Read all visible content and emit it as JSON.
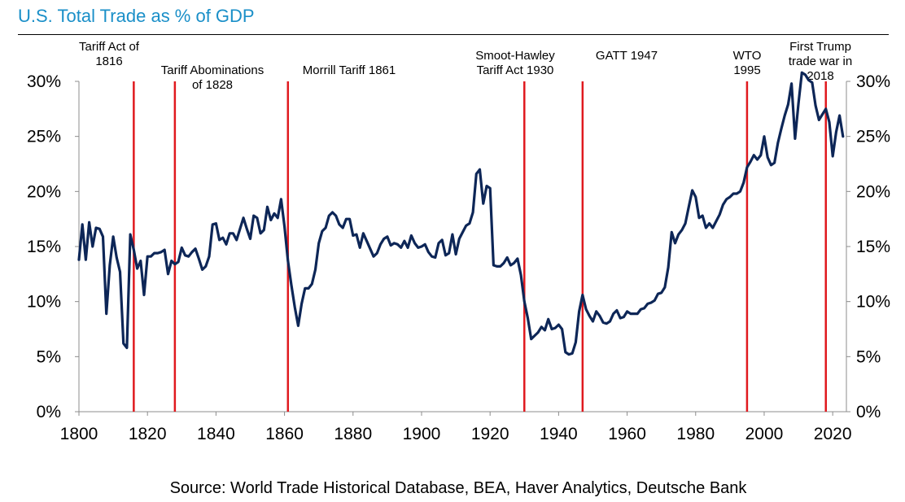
{
  "title": "U.S. Total Trade as % of GDP",
  "source": "Source: World Trade Historical Database, BEA, Haver Analytics, Deutsche Bank",
  "chart_data": {
    "type": "line",
    "title": "U.S. Total Trade as % of GDP",
    "xlabel": "",
    "ylabel": "",
    "xlim": [
      1800,
      2024
    ],
    "ylim": [
      0,
      30
    ],
    "x_ticks": [
      "1800",
      "1820",
      "1840",
      "1860",
      "1880",
      "1900",
      "1920",
      "1940",
      "1960",
      "1980",
      "2000",
      "2020"
    ],
    "y_ticks": [
      "0%",
      "5%",
      "10%",
      "15%",
      "20%",
      "25%",
      "30%"
    ],
    "grid": false,
    "line_color": "#0d2657",
    "event_color": "#e0191e",
    "events": [
      {
        "year": 1816,
        "label": [
          "Tariff Act of",
          "1816"
        ]
      },
      {
        "year": 1828,
        "label": [
          "Tariff Abominations",
          "of 1828"
        ]
      },
      {
        "year": 1861,
        "label": [
          "Morrill Tariff 1861"
        ]
      },
      {
        "year": 1930,
        "label": [
          "Smoot-Hawley",
          "Tariff Act 1930"
        ]
      },
      {
        "year": 1947,
        "label": [
          "GATT 1947"
        ]
      },
      {
        "year": 1995,
        "label": [
          "WTO",
          "1995"
        ]
      },
      {
        "year": 2018,
        "label": [
          "First Trump",
          "trade war in",
          "2018"
        ]
      }
    ],
    "series": [
      {
        "name": "",
        "points": [
          [
            1800,
            13.8
          ],
          [
            1801,
            17.0
          ],
          [
            1802,
            13.8
          ],
          [
            1803,
            17.2
          ],
          [
            1804,
            15.0
          ],
          [
            1805,
            16.7
          ],
          [
            1806,
            16.6
          ],
          [
            1807,
            15.9
          ],
          [
            1808,
            8.9
          ],
          [
            1809,
            13.3
          ],
          [
            1810,
            15.9
          ],
          [
            1811,
            14.0
          ],
          [
            1812,
            12.7
          ],
          [
            1813,
            6.2
          ],
          [
            1814,
            5.8
          ],
          [
            1815,
            16.1
          ],
          [
            1816,
            14.7
          ],
          [
            1817,
            13.0
          ],
          [
            1818,
            13.7
          ],
          [
            1819,
            10.6
          ],
          [
            1820,
            14.1
          ],
          [
            1821,
            14.1
          ],
          [
            1822,
            14.4
          ],
          [
            1823,
            14.4
          ],
          [
            1824,
            14.5
          ],
          [
            1825,
            14.7
          ],
          [
            1826,
            12.5
          ],
          [
            1827,
            13.7
          ],
          [
            1828,
            13.4
          ],
          [
            1829,
            13.6
          ],
          [
            1830,
            14.9
          ],
          [
            1831,
            14.2
          ],
          [
            1832,
            14.1
          ],
          [
            1833,
            14.5
          ],
          [
            1834,
            14.8
          ],
          [
            1835,
            13.9
          ],
          [
            1836,
            12.9
          ],
          [
            1837,
            13.2
          ],
          [
            1838,
            14.1
          ],
          [
            1839,
            17.0
          ],
          [
            1840,
            17.1
          ],
          [
            1841,
            15.6
          ],
          [
            1842,
            15.8
          ],
          [
            1843,
            15.2
          ],
          [
            1844,
            16.2
          ],
          [
            1845,
            16.2
          ],
          [
            1846,
            15.6
          ],
          [
            1847,
            16.6
          ],
          [
            1848,
            17.6
          ],
          [
            1849,
            16.6
          ],
          [
            1850,
            15.7
          ],
          [
            1851,
            17.8
          ],
          [
            1852,
            17.6
          ],
          [
            1853,
            16.2
          ],
          [
            1854,
            16.5
          ],
          [
            1855,
            18.6
          ],
          [
            1856,
            17.4
          ],
          [
            1857,
            18.0
          ],
          [
            1858,
            17.6
          ],
          [
            1859,
            19.3
          ],
          [
            1860,
            16.8
          ],
          [
            1861,
            13.7
          ],
          [
            1862,
            11.5
          ],
          [
            1863,
            9.5
          ],
          [
            1864,
            7.8
          ],
          [
            1865,
            9.8
          ],
          [
            1866,
            11.2
          ],
          [
            1867,
            11.2
          ],
          [
            1868,
            11.6
          ],
          [
            1869,
            12.9
          ],
          [
            1870,
            15.3
          ],
          [
            1871,
            16.4
          ],
          [
            1872,
            16.7
          ],
          [
            1873,
            17.8
          ],
          [
            1874,
            18.1
          ],
          [
            1875,
            17.8
          ],
          [
            1876,
            17.0
          ],
          [
            1877,
            16.7
          ],
          [
            1878,
            17.5
          ],
          [
            1879,
            17.5
          ],
          [
            1880,
            16.0
          ],
          [
            1881,
            16.1
          ],
          [
            1882,
            14.9
          ],
          [
            1883,
            16.2
          ],
          [
            1884,
            15.5
          ],
          [
            1885,
            14.8
          ],
          [
            1886,
            14.1
          ],
          [
            1887,
            14.4
          ],
          [
            1888,
            15.2
          ],
          [
            1889,
            15.7
          ],
          [
            1890,
            15.9
          ],
          [
            1891,
            15.1
          ],
          [
            1892,
            15.3
          ],
          [
            1893,
            15.2
          ],
          [
            1894,
            14.9
          ],
          [
            1895,
            15.5
          ],
          [
            1896,
            14.9
          ],
          [
            1897,
            16.0
          ],
          [
            1898,
            15.3
          ],
          [
            1899,
            14.9
          ],
          [
            1900,
            15.0
          ],
          [
            1901,
            15.2
          ],
          [
            1902,
            14.5
          ],
          [
            1903,
            14.1
          ],
          [
            1904,
            14.0
          ],
          [
            1905,
            15.3
          ],
          [
            1906,
            15.6
          ],
          [
            1907,
            14.2
          ],
          [
            1908,
            14.4
          ],
          [
            1909,
            16.1
          ],
          [
            1910,
            14.3
          ],
          [
            1911,
            15.7
          ],
          [
            1912,
            16.3
          ],
          [
            1913,
            16.9
          ],
          [
            1914,
            17.1
          ],
          [
            1915,
            18.1
          ],
          [
            1916,
            21.6
          ],
          [
            1917,
            22.0
          ],
          [
            1918,
            18.9
          ],
          [
            1919,
            20.5
          ],
          [
            1920,
            20.3
          ],
          [
            1921,
            13.3
          ],
          [
            1922,
            13.2
          ],
          [
            1923,
            13.2
          ],
          [
            1924,
            13.5
          ],
          [
            1925,
            14.0
          ],
          [
            1926,
            13.3
          ],
          [
            1927,
            13.5
          ],
          [
            1928,
            13.9
          ],
          [
            1929,
            12.4
          ],
          [
            1930,
            10.0
          ],
          [
            1931,
            8.5
          ],
          [
            1932,
            6.6
          ],
          [
            1933,
            6.9
          ],
          [
            1934,
            7.2
          ],
          [
            1935,
            7.7
          ],
          [
            1936,
            7.4
          ],
          [
            1937,
            8.4
          ],
          [
            1938,
            7.5
          ],
          [
            1939,
            7.6
          ],
          [
            1940,
            7.9
          ],
          [
            1941,
            7.5
          ],
          [
            1942,
            5.4
          ],
          [
            1943,
            5.2
          ],
          [
            1944,
            5.3
          ],
          [
            1945,
            6.3
          ],
          [
            1946,
            9.1
          ],
          [
            1947,
            10.6
          ],
          [
            1948,
            9.3
          ],
          [
            1949,
            8.7
          ],
          [
            1950,
            8.2
          ],
          [
            1951,
            9.1
          ],
          [
            1952,
            8.7
          ],
          [
            1953,
            8.1
          ],
          [
            1954,
            8.0
          ],
          [
            1955,
            8.2
          ],
          [
            1956,
            8.9
          ],
          [
            1957,
            9.2
          ],
          [
            1958,
            8.5
          ],
          [
            1959,
            8.6
          ],
          [
            1960,
            9.1
          ],
          [
            1961,
            8.9
          ],
          [
            1962,
            8.9
          ],
          [
            1963,
            8.9
          ],
          [
            1964,
            9.3
          ],
          [
            1965,
            9.4
          ],
          [
            1966,
            9.8
          ],
          [
            1967,
            9.9
          ],
          [
            1968,
            10.1
          ],
          [
            1969,
            10.7
          ],
          [
            1970,
            10.8
          ],
          [
            1971,
            11.3
          ],
          [
            1972,
            13.1
          ],
          [
            1973,
            16.3
          ],
          [
            1974,
            15.3
          ],
          [
            1975,
            16.1
          ],
          [
            1976,
            16.5
          ],
          [
            1977,
            17.1
          ],
          [
            1978,
            18.6
          ],
          [
            1979,
            20.1
          ],
          [
            1980,
            19.5
          ],
          [
            1981,
            17.6
          ],
          [
            1982,
            17.8
          ],
          [
            1983,
            16.7
          ],
          [
            1984,
            17.1
          ],
          [
            1985,
            16.7
          ],
          [
            1986,
            17.3
          ],
          [
            1987,
            17.9
          ],
          [
            1988,
            18.8
          ],
          [
            1989,
            19.3
          ],
          [
            1990,
            19.5
          ],
          [
            1991,
            19.8
          ],
          [
            1992,
            19.8
          ],
          [
            1993,
            20.0
          ],
          [
            1994,
            20.8
          ],
          [
            1995,
            22.2
          ],
          [
            1996,
            22.7
          ],
          [
            1997,
            23.3
          ],
          [
            1998,
            22.9
          ],
          [
            1999,
            23.3
          ],
          [
            2000,
            25.0
          ],
          [
            2001,
            23.1
          ],
          [
            2002,
            22.4
          ],
          [
            2003,
            22.6
          ],
          [
            2004,
            24.4
          ],
          [
            2005,
            25.7
          ],
          [
            2006,
            26.9
          ],
          [
            2007,
            27.9
          ],
          [
            2008,
            29.8
          ],
          [
            2009,
            24.8
          ],
          [
            2010,
            28.0
          ],
          [
            2011,
            30.8
          ],
          [
            2012,
            30.6
          ],
          [
            2013,
            30.1
          ],
          [
            2014,
            29.9
          ],
          [
            2015,
            27.8
          ],
          [
            2016,
            26.5
          ],
          [
            2017,
            27.0
          ],
          [
            2018,
            27.5
          ],
          [
            2019,
            26.3
          ],
          [
            2020,
            23.2
          ],
          [
            2021,
            25.4
          ],
          [
            2022,
            26.9
          ],
          [
            2023,
            25.0
          ]
        ]
      }
    ]
  }
}
